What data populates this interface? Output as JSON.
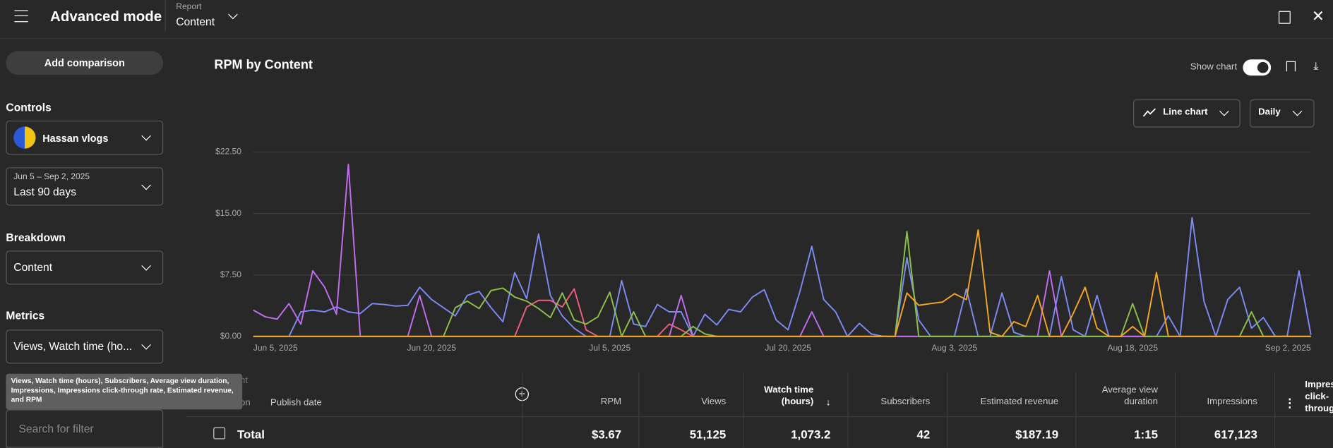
{
  "header": {
    "title": "Advanced mode",
    "report_label": "Report",
    "report_value": "Content"
  },
  "sidebar": {
    "add_comparison": "Add comparison",
    "controls_heading": "Controls",
    "channel": "Hassan vlogs",
    "date_range": "Jun 5 – Sep 2, 2025",
    "period": "Last 90 days",
    "breakdown_heading": "Breakdown",
    "breakdown": "Content",
    "metrics_heading": "Metrics",
    "metrics": "Views, Watch time (ho...",
    "tooltip": "Views, Watch time (hours), Subscribers, Average view duration, Impressions, Impressions click-through rate, Estimated revenue, and RPM",
    "search_placeholder": "Search for filter"
  },
  "toolbar": {
    "show_chart": "Show chart",
    "chart_type": "Line chart",
    "interval": "Daily"
  },
  "chart_data": {
    "type": "line",
    "title": "RPM by Content",
    "categories": [
      "Jun 5, 2025",
      null,
      null,
      null,
      null,
      null,
      null,
      null,
      null,
      null,
      null,
      null,
      null,
      null,
      null,
      "Jun 20, 2025",
      null,
      null,
      null,
      null,
      null,
      null,
      null,
      null,
      null,
      null,
      null,
      null,
      null,
      null,
      "Jul 5, 2025",
      null,
      null,
      null,
      null,
      null,
      null,
      null,
      null,
      null,
      null,
      null,
      null,
      null,
      null,
      "Jul 20, 2025",
      null,
      null,
      null,
      null,
      null,
      null,
      null,
      null,
      null,
      null,
      null,
      null,
      null,
      "Aug 3, 2025",
      null,
      null,
      null,
      null,
      null,
      null,
      null,
      null,
      null,
      null,
      null,
      null,
      null,
      null,
      "Aug 18, 2025",
      null,
      null,
      null,
      null,
      null,
      null,
      null,
      null,
      null,
      null,
      null,
      null,
      null,
      null,
      "Sep 2, 2025"
    ],
    "ylim": [
      0,
      22.5
    ],
    "yticks": [
      {
        "value": 0,
        "label": "$0.00"
      },
      {
        "value": 7.5,
        "label": "$7.50"
      },
      {
        "value": 15,
        "label": "$15.00"
      },
      {
        "value": 22.5,
        "label": "$22.50"
      }
    ],
    "grid": true,
    "series": [
      {
        "color": "#7b8cf5",
        "values": [
          0,
          0,
          0,
          0,
          3.0,
          3.2,
          3.0,
          3.6,
          3.0,
          2.8,
          4.0,
          3.9,
          3.7,
          3.8,
          6.0,
          4.5,
          3.5,
          2.5,
          5.0,
          5.5,
          3.5,
          1.8,
          7.8,
          4.6,
          12.5,
          5.0,
          2.5,
          1.0,
          0,
          0,
          0,
          6.8,
          1.5,
          1.2,
          3.9,
          3.0,
          3.0,
          0,
          2.7,
          1.4,
          3.3,
          3.0,
          4.8,
          5.7,
          2.0,
          0.8,
          5.5,
          11.0,
          4.5,
          3.0,
          0,
          1.6,
          0.3,
          0,
          0,
          9.6,
          2.0,
          0,
          0,
          0,
          5.8,
          0,
          0,
          5.3,
          0.5,
          0,
          0,
          0,
          7.3,
          0.8,
          0,
          5.0,
          0,
          0,
          0,
          0,
          0,
          2.5,
          0,
          14.5,
          4.3,
          0,
          4.5,
          6.0,
          1.0,
          2.3,
          0,
          0,
          8.0,
          0.2
        ]
      },
      {
        "color": "#ef5f7f",
        "values": [
          0,
          0,
          0,
          0,
          0,
          0,
          0,
          0,
          0,
          0,
          0,
          0,
          0,
          0,
          0,
          0,
          0,
          0,
          0,
          0,
          0,
          0,
          0,
          3.6,
          4.4,
          4.4,
          3.6,
          5.8,
          0.8,
          0,
          0,
          0,
          0,
          0,
          0,
          1.5,
          0.8,
          0,
          0,
          0,
          0,
          0,
          0,
          0,
          0,
          0,
          0,
          0,
          0,
          0,
          0,
          0,
          0,
          0,
          0,
          0,
          0,
          0,
          0,
          0,
          0,
          0,
          0,
          0,
          0,
          0,
          0,
          0,
          0,
          0,
          0,
          0,
          0,
          0,
          0,
          0,
          0,
          0,
          0,
          0,
          0,
          0,
          0,
          0,
          0,
          0,
          0,
          0,
          0,
          0
        ]
      },
      {
        "color": "#c46cf2",
        "values": [
          3.2,
          2.4,
          2.1,
          4.0,
          1.5,
          8.0,
          6.0,
          2.7,
          21.0,
          0,
          0,
          0,
          0,
          0,
          5.0,
          0,
          0,
          0,
          0,
          0,
          0,
          0,
          0,
          0,
          0,
          0,
          0,
          0,
          0,
          0,
          0,
          0,
          0,
          0,
          0,
          0,
          5.0,
          0,
          0,
          0,
          0,
          0,
          0,
          0,
          0,
          0,
          0,
          3.0,
          0,
          0,
          0,
          0,
          0,
          0,
          0,
          0,
          0,
          0,
          0,
          0,
          0,
          0,
          0,
          0,
          0,
          0,
          0,
          8.0,
          0,
          0,
          0,
          0,
          0,
          0,
          0,
          0,
          0,
          0,
          0,
          0,
          0,
          0,
          0,
          0,
          0,
          0,
          0,
          0,
          0,
          0
        ]
      },
      {
        "color": "#8bc34a",
        "values": [
          0,
          0,
          0,
          0,
          0,
          0,
          0,
          0,
          0,
          0,
          0,
          0,
          0,
          0,
          0,
          0,
          0,
          3.5,
          4.3,
          3.4,
          5.6,
          5.9,
          4.8,
          4.3,
          3.4,
          2.3,
          5.3,
          2.0,
          1.5,
          2.4,
          5.4,
          0,
          3.0,
          0,
          0,
          0,
          0,
          1.2,
          0.3,
          0,
          0,
          0,
          0,
          0,
          0,
          0,
          0,
          0,
          0,
          0,
          0,
          0,
          0,
          0,
          0,
          12.8,
          0,
          0,
          0,
          0,
          0,
          0,
          0,
          0,
          0,
          0,
          0,
          0,
          0,
          0,
          0,
          0,
          0,
          0,
          4.0,
          0,
          0,
          0,
          0,
          0,
          0,
          0,
          0,
          0,
          3.0,
          0,
          0,
          0,
          0,
          0
        ]
      },
      {
        "color": "#f5a623",
        "values": [
          0,
          0,
          0,
          0,
          0,
          0,
          0,
          0,
          0,
          0,
          0,
          0,
          0,
          0,
          0,
          0,
          0,
          0,
          0,
          0,
          0,
          0,
          0,
          0,
          0,
          0,
          0,
          0,
          0,
          0,
          0,
          0,
          0,
          0,
          0,
          0,
          0,
          0,
          0,
          0,
          0,
          0,
          0,
          0,
          0,
          0,
          0,
          0,
          0,
          0,
          0,
          0,
          0,
          0,
          0,
          5.3,
          3.8,
          4.0,
          4.2,
          5.2,
          4.5,
          13.0,
          0.5,
          0,
          1.8,
          1.2,
          5.0,
          0,
          0,
          2.8,
          6.0,
          1.0,
          0,
          0,
          1.2,
          0,
          7.8,
          0,
          0,
          0,
          0,
          0,
          0,
          0,
          0,
          0,
          0,
          0,
          0,
          0
        ]
      }
    ]
  },
  "table": {
    "columns": [
      "Content",
      "Duration",
      "Publish date",
      "RPM",
      "Views",
      "Watch time (hours)",
      "Subscribers",
      "Estimated revenue",
      "Average view duration",
      "Impressions",
      "Impressions click-through rate"
    ],
    "total_label": "Total",
    "total": [
      "$3.67",
      "51,125",
      "1,073.2",
      "42",
      "$187.19",
      "1:15",
      "617,123"
    ]
  }
}
